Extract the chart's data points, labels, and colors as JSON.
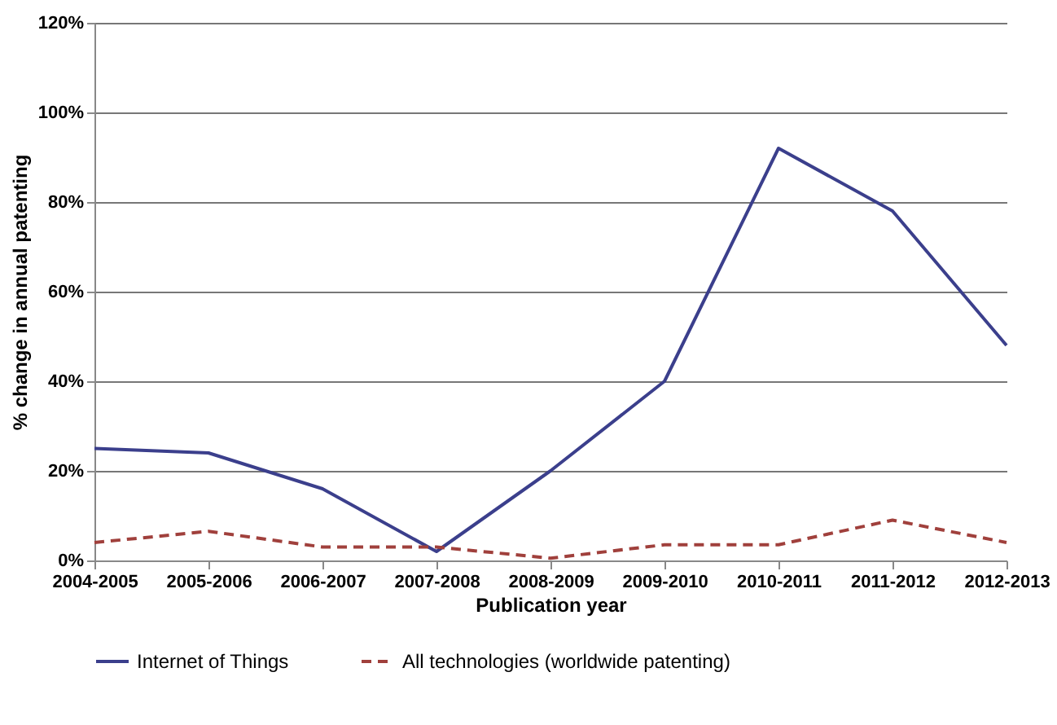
{
  "chart_data": {
    "type": "line",
    "xlabel": "Publication year",
    "ylabel": "% change in annual patenting",
    "categories": [
      "2004-2005",
      "2005-2006",
      "2006-2007",
      "2007-2008",
      "2008-2009",
      "2009-2010",
      "2010-2011",
      "2011-2012",
      "2012-2013"
    ],
    "series": [
      {
        "name": "Internet of Things",
        "color": "#3b3f8c",
        "line_style": "solid",
        "values": [
          25,
          24,
          16,
          2,
          20,
          40,
          92,
          78,
          48
        ]
      },
      {
        "name": "All technologies (worldwide patenting)",
        "color": "#a0403c",
        "line_style": "dashed",
        "values": [
          4,
          6.5,
          3,
          3,
          0.5,
          3.5,
          3.5,
          9,
          4
        ]
      }
    ],
    "ylim": [
      0,
      120
    ],
    "yticks": [
      {
        "value": 0,
        "label": "0%"
      },
      {
        "value": 20,
        "label": "20%"
      },
      {
        "value": 40,
        "label": "40%"
      },
      {
        "value": 60,
        "label": "60%"
      },
      {
        "value": 80,
        "label": "80%"
      },
      {
        "value": 100,
        "label": "100%"
      },
      {
        "value": 120,
        "label": "120%"
      }
    ],
    "grid": "y",
    "legend": "bottom",
    "marker": "none"
  }
}
